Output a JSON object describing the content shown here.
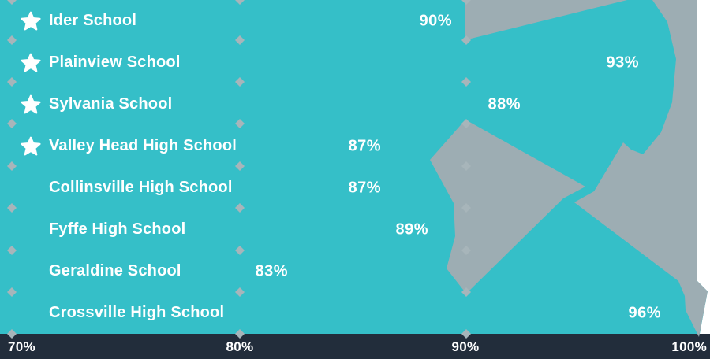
{
  "chart_data": {
    "type": "bar",
    "orientation": "horizontal",
    "title": "",
    "categories": [
      "Ider School",
      "Plainview School",
      "Sylvania School",
      "Valley Head High School",
      "Collinsville High School",
      "Fyffe High School",
      "Geraldine School",
      "Crossville High School"
    ],
    "values": [
      90,
      93,
      88,
      87,
      87,
      89,
      83,
      96
    ],
    "value_labels": [
      "90%",
      "93%",
      "88%",
      "87%",
      "87%",
      "89%",
      "83%",
      "96%"
    ],
    "unit": "%",
    "starred_categories": [
      "Ider School",
      "Plainview School",
      "Sylvania School",
      "Valley Head High School"
    ],
    "xlim": [
      70,
      100
    ],
    "x_ticks": [
      "70%",
      "80%",
      "90%",
      "100%"
    ],
    "gridlines": "vertical dotted (diamond markers) at 70%, 80%, 90%",
    "legend": "none"
  },
  "rows": [
    {
      "school": "Ider School",
      "label": "90%",
      "starred": true
    },
    {
      "school": "Plainview School",
      "label": "93%",
      "starred": true
    },
    {
      "school": "Sylvania School",
      "label": "88%",
      "starred": true
    },
    {
      "school": "Valley Head High School",
      "label": "87%",
      "starred": true
    },
    {
      "school": "Collinsville High School",
      "label": "87%",
      "starred": false
    },
    {
      "school": "Fyffe High School",
      "label": "89%",
      "starred": false
    },
    {
      "school": "Geraldine School",
      "label": "83%",
      "starred": false
    },
    {
      "school": "Crossville High School",
      "label": "96%",
      "starred": false
    }
  ],
  "axis": {
    "tick_70": "70%",
    "tick_80": "80%",
    "tick_90": "90%",
    "tick_100": "100%"
  },
  "colors": {
    "teal_background": "#35bfc8",
    "ribbon_gray": "#9dadb3",
    "axis_navy": "#222d3b",
    "text_white": "#ffffff",
    "diamond_gray": "#a7b5ba",
    "page_white": "#ffffff"
  }
}
